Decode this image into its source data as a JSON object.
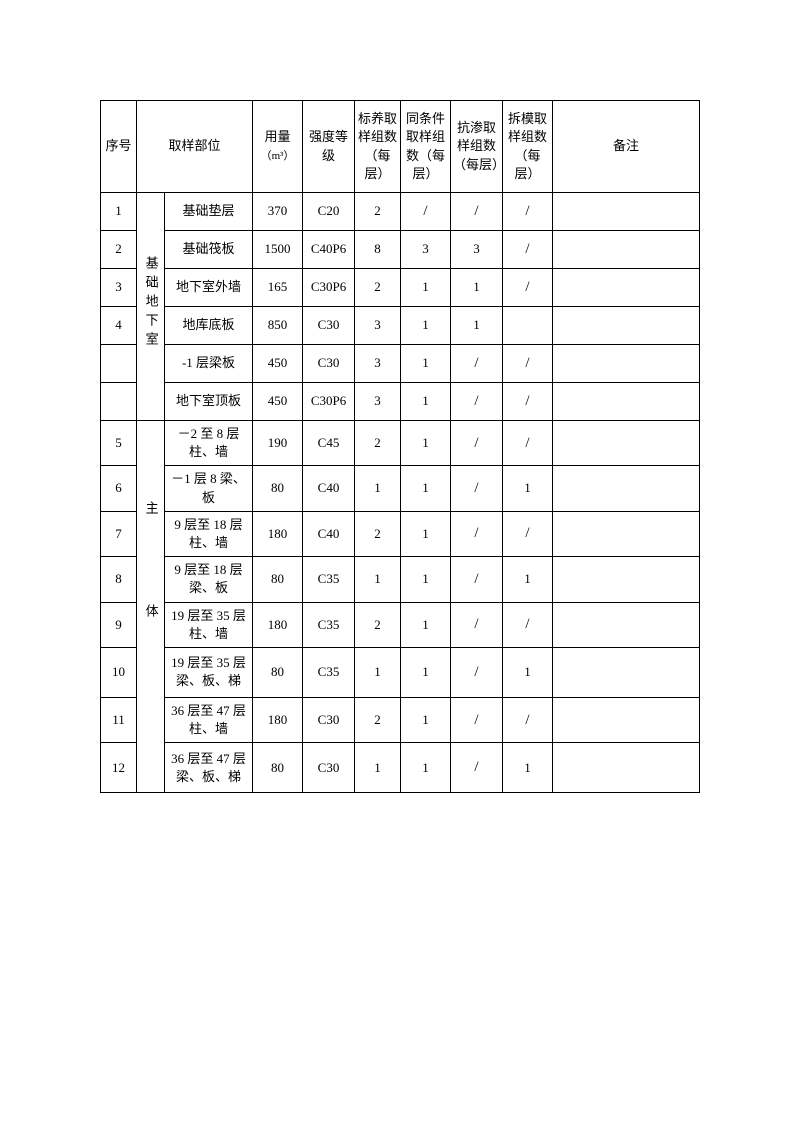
{
  "headers": {
    "seq": "序号",
    "location": "取样部位",
    "qty": "用量",
    "qty_unit": "（m³）",
    "grade": "强度等级",
    "std": "标养取样组数（每层）",
    "same": "同条件取样组数（每层）",
    "perm": "抗渗取样组数（每层）",
    "demo": "拆模取样组数（每层）",
    "remark": "备注"
  },
  "sections": {
    "underground": "基础地下室",
    "main": "主体"
  },
  "rows": [
    {
      "seq": "1",
      "part": "基础垫层",
      "qty": "370",
      "grade": "C20",
      "std": "2",
      "same": "/",
      "perm": "/",
      "demo": "/",
      "remark": ""
    },
    {
      "seq": "2",
      "part": "基础筏板",
      "qty": "1500",
      "grade": "C40P6",
      "std": "8",
      "same": "3",
      "perm": "3",
      "demo": "/",
      "remark": ""
    },
    {
      "seq": "3",
      "part": "地下室外墙",
      "qty": "165",
      "grade": "C30P6",
      "std": "2",
      "same": "1",
      "perm": "1",
      "demo": "/",
      "remark": ""
    },
    {
      "seq": "4",
      "part": "地库底板",
      "qty": "850",
      "grade": "C30",
      "std": "3",
      "same": "1",
      "perm": "1",
      "demo": "",
      "remark": ""
    },
    {
      "seq": "",
      "part": "-1 层梁板",
      "qty": "450",
      "grade": "C30",
      "std": "3",
      "same": "1",
      "perm": "/",
      "demo": "/",
      "remark": ""
    },
    {
      "seq": "",
      "part": "地下室顶板",
      "qty": "450",
      "grade": "C30P6",
      "std": "3",
      "same": "1",
      "perm": "/",
      "demo": "/",
      "remark": ""
    },
    {
      "seq": "5",
      "part": "－2 至 8 层柱、墙",
      "qty": "190",
      "grade": "C45",
      "std": "2",
      "same": "1",
      "perm": "/",
      "demo": "/",
      "remark": ""
    },
    {
      "seq": "6",
      "part": "－1 层 8 梁、板",
      "qty": "80",
      "grade": "C40",
      "std": "1",
      "same": "1",
      "perm": "/",
      "demo": "1",
      "remark": ""
    },
    {
      "seq": "7",
      "part": "9 层至 18 层柱、墙",
      "qty": "180",
      "grade": "C40",
      "std": "2",
      "same": "1",
      "perm": "/",
      "demo": "/",
      "remark": ""
    },
    {
      "seq": "8",
      "part": "9 层至 18 层梁、板",
      "qty": "80",
      "grade": "C35",
      "std": "1",
      "same": "1",
      "perm": "/",
      "demo": "1",
      "remark": ""
    },
    {
      "seq": "9",
      "part": "19 层至 35 层柱、墙",
      "qty": "180",
      "grade": "C35",
      "std": "2",
      "same": "1",
      "perm": "/",
      "demo": "/",
      "remark": ""
    },
    {
      "seq": "10",
      "part": "19 层至 35 层梁、板、梯",
      "qty": "80",
      "grade": "C35",
      "std": "1",
      "same": "1",
      "perm": "/",
      "demo": "1",
      "remark": ""
    },
    {
      "seq": "11",
      "part": "36 层至 47 层柱、墙",
      "qty": "180",
      "grade": "C30",
      "std": "2",
      "same": "1",
      "perm": "/",
      "demo": "/",
      "remark": ""
    },
    {
      "seq": "12",
      "part": "36 层至 47 层梁、板、梯",
      "qty": "80",
      "grade": "C30",
      "std": "1",
      "same": "1",
      "perm": "/",
      "demo": "1",
      "remark": ""
    }
  ]
}
